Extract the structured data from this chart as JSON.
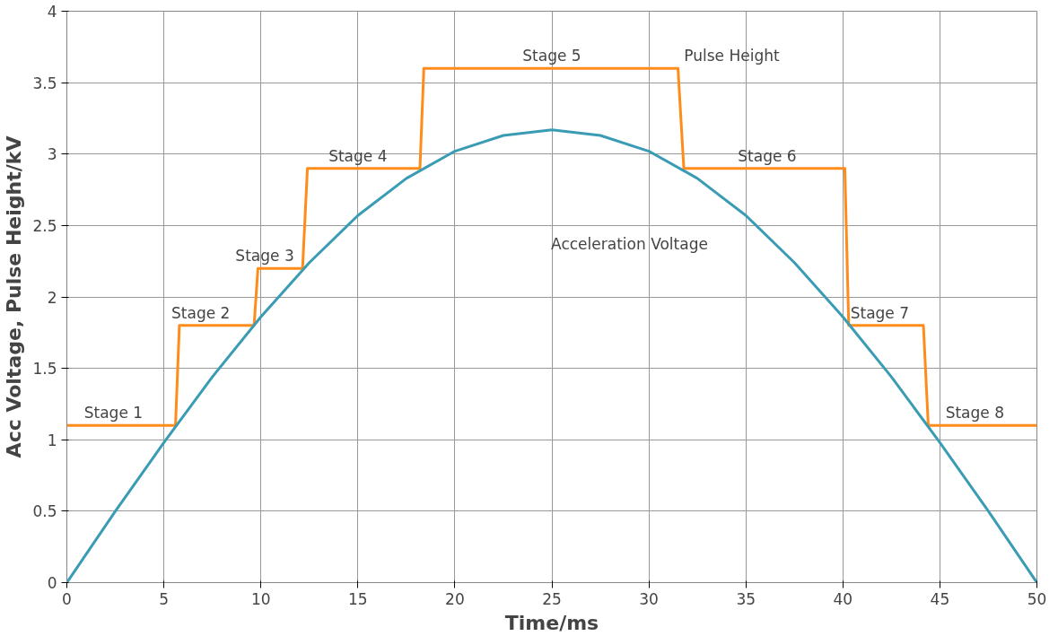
{
  "chart_data": {
    "type": "line",
    "xlabel": "Time/ms",
    "ylabel": "Acc Voltage, Pulse Height/kV",
    "xlim": [
      0,
      50
    ],
    "ylim": [
      0,
      4
    ],
    "xticks": [
      0,
      5,
      10,
      15,
      20,
      25,
      30,
      35,
      40,
      45,
      50
    ],
    "yticks": [
      0,
      0.5,
      1,
      1.5,
      2,
      2.5,
      3,
      3.5,
      4
    ],
    "grid": true,
    "marker": "none",
    "line_style": "solid",
    "series": [
      {
        "color": "#ff8c1a",
        "x": [
          0,
          5.6,
          5.8,
          9.65,
          9.85,
          12.15,
          12.4,
          18.2,
          18.4,
          31.5,
          31.8,
          40.1,
          40.3,
          44.15,
          44.4,
          50
        ],
        "values": [
          1.1,
          1.1,
          1.8,
          1.8,
          2.2,
          2.2,
          2.9,
          2.9,
          3.6,
          3.6,
          2.9,
          2.9,
          1.8,
          1.8,
          1.1,
          1.1
        ]
      },
      {
        "color": "#3a9cb4",
        "x": [
          0,
          2.5,
          5,
          7.5,
          10,
          12.5,
          15,
          17.5,
          20,
          22.5,
          25,
          27.5,
          30,
          32.5,
          35,
          37.5,
          40,
          42.5,
          45,
          47.5,
          50
        ],
        "values": [
          0,
          0.5,
          0.98,
          1.44,
          1.86,
          2.24,
          2.57,
          2.83,
          3.02,
          3.13,
          3.17,
          3.13,
          3.02,
          2.83,
          2.57,
          2.24,
          1.86,
          1.44,
          0.98,
          0.5,
          0
        ]
      }
    ],
    "annotations": [
      {
        "text": "Stage 1",
        "x": 2.4,
        "y": 1.1
      },
      {
        "text": "Stage 2",
        "x": 6.9,
        "y": 1.8
      },
      {
        "text": "Stage 3",
        "x": 10.2,
        "y": 2.2
      },
      {
        "text": "Stage 4",
        "x": 15,
        "y": 2.9
      },
      {
        "text": "Stage 5",
        "x": 25,
        "y": 3.6
      },
      "Pulse Height",
      {
        "text": "Stage 6",
        "x": 36.1,
        "y": 2.9
      },
      "Acceleration Voltage",
      {
        "text": "Stage 7",
        "x": 41.9,
        "y": 1.8
      },
      {
        "text": "Stage 8",
        "x": 46.8,
        "y": 1.1
      }
    ]
  }
}
